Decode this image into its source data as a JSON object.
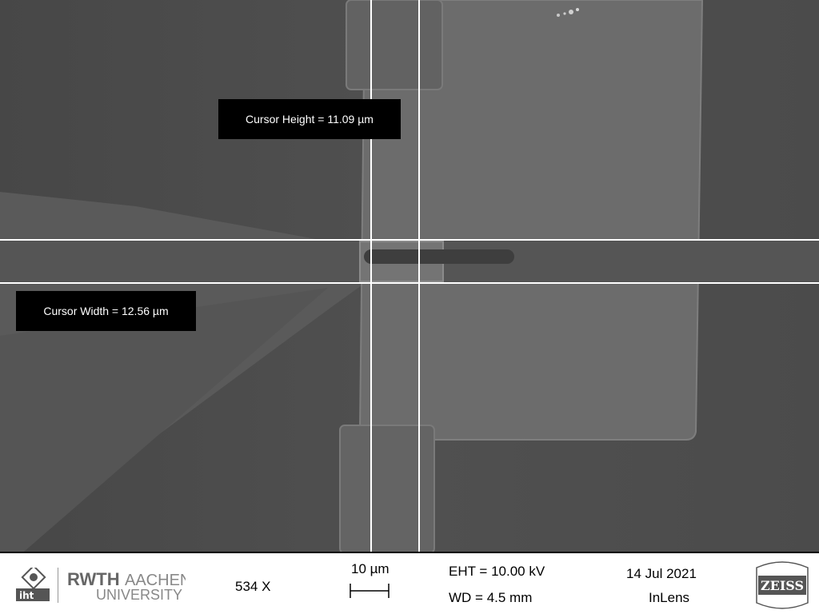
{
  "measurements": {
    "cursor_height": "Cursor Height = 11.09 µm",
    "cursor_width": "Cursor Width = 12.56 µm"
  },
  "info_bar": {
    "iht_logo": "iht",
    "rwth_logo": "RWTH AACHEN UNIVERSITY",
    "magnification": "534 X",
    "scale_label": "10 µm",
    "eht": "EHT = 10.00 kV",
    "wd": "WD =  4.5 mm",
    "date": "14 Jul 2021",
    "detector": "InLens",
    "zeiss_logo": "ZEISS"
  },
  "colors": {
    "background": "#4a4a4a",
    "pad": "#6e6e6e",
    "cursor_line": "#ffffff"
  }
}
